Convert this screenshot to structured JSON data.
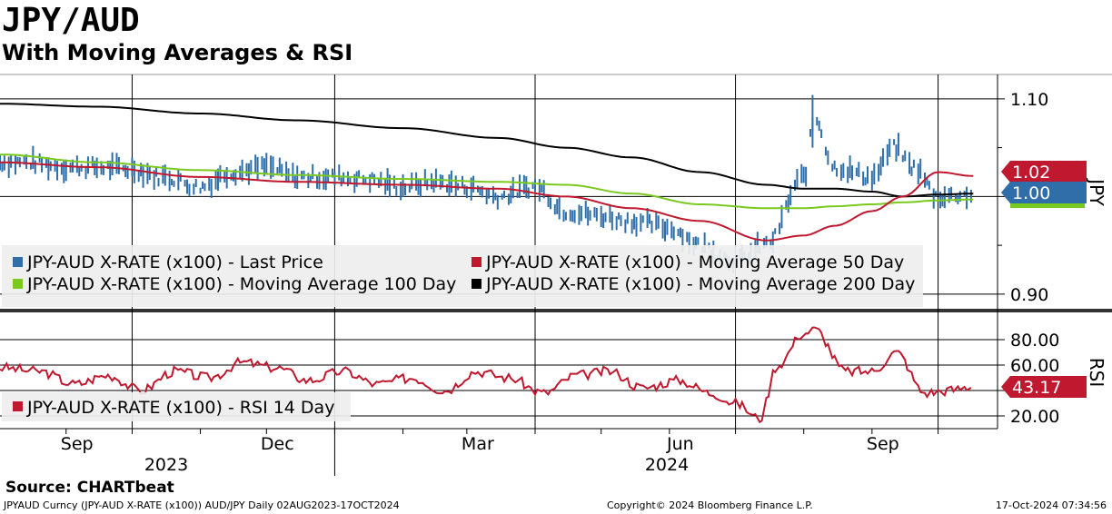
{
  "header": {
    "title": "JPY/AUD",
    "subtitle": "With Moving Averages & RSI"
  },
  "footer": {
    "source": "Source: CHARTbeat",
    "security": "JPYAUD Curncy (JPY-AUD X-RATE (x100)) AUD/JPY  Daily 02AUG2023-17OCT2024",
    "copyright": "Copyright© 2024 Bloomberg Finance L.P.",
    "timestamp": "17-Oct-2024 07:34:56"
  },
  "colors": {
    "last_price": "#2f6ea8",
    "ma50": "#c0182e",
    "ma100": "#7ac91f",
    "ma200": "#000000",
    "rsi": "#c0182e"
  },
  "chart_data": [
    {
      "type": "line",
      "panel": "price",
      "yaxis_label": "JPY",
      "ylim": [
        0.885,
        1.125
      ],
      "yticks": [
        0.9,
        1.0,
        1.1
      ],
      "ytick_labels": [
        "0.90",
        "1.00",
        "1.10"
      ],
      "xticks": [
        "Sep",
        "Dec",
        "Mar",
        "Jun",
        "Sep"
      ],
      "year_labels": [
        "2023",
        "2024"
      ],
      "legend_placement": "bottom-left",
      "last_value_labels": [
        {
          "series": "JPY-AUD X-RATE (x100) - Moving Average 50 Day",
          "value": "1.02"
        },
        {
          "series": "JPY-AUD X-RATE (x100) - Last Price",
          "value": "1.00"
        }
      ],
      "series": [
        {
          "name": "JPY-AUD X-RATE (x100) - Last Price",
          "style": "bar-ohlc",
          "x": [
            "2023-08-02",
            "2023-08-15",
            "2023-09-01",
            "2023-09-15",
            "2023-10-01",
            "2023-10-15",
            "2023-11-01",
            "2023-11-15",
            "2023-12-01",
            "2023-12-15",
            "2024-01-01",
            "2024-01-15",
            "2024-02-01",
            "2024-02-15",
            "2024-03-01",
            "2024-03-15",
            "2024-04-01",
            "2024-04-15",
            "2024-05-01",
            "2024-05-15",
            "2024-06-01",
            "2024-06-15",
            "2024-07-01",
            "2024-07-15",
            "2024-08-01",
            "2024-08-06",
            "2024-08-15",
            "2024-09-01",
            "2024-09-11",
            "2024-09-20",
            "2024-10-01",
            "2024-10-17"
          ],
          "values": [
            1.035,
            1.035,
            1.03,
            1.03,
            1.028,
            1.02,
            1.01,
            1.025,
            1.03,
            1.02,
            1.02,
            1.018,
            1.01,
            1.015,
            1.01,
            1.0,
            1.01,
            0.985,
            0.98,
            0.975,
            0.968,
            0.95,
            0.935,
            0.95,
            1.02,
            1.08,
            1.03,
            1.02,
            1.05,
            1.03,
            1.0,
            1.002
          ]
        },
        {
          "name": "JPY-AUD X-RATE (x100) - Moving Average 50 Day",
          "x": [
            "2023-08-02",
            "2023-09-15",
            "2023-11-01",
            "2023-12-15",
            "2024-02-01",
            "2024-03-15",
            "2024-04-15",
            "2024-05-15",
            "2024-06-15",
            "2024-07-15",
            "2024-08-01",
            "2024-08-15",
            "2024-09-01",
            "2024-09-15",
            "2024-10-01",
            "2024-10-17"
          ],
          "values": [
            1.035,
            1.03,
            1.02,
            1.015,
            1.012,
            1.008,
            1.0,
            0.988,
            0.975,
            0.955,
            0.96,
            0.97,
            0.985,
            1.0,
            1.025,
            1.021
          ]
        },
        {
          "name": "JPY-AUD X-RATE (x100) - Moving Average 100 Day",
          "x": [
            "2023-08-02",
            "2023-09-15",
            "2023-11-01",
            "2023-12-15",
            "2024-02-01",
            "2024-03-15",
            "2024-04-15",
            "2024-05-15",
            "2024-06-15",
            "2024-07-15",
            "2024-08-01",
            "2024-08-15",
            "2024-09-01",
            "2024-09-15",
            "2024-10-01",
            "2024-10-17"
          ],
          "values": [
            1.043,
            1.035,
            1.027,
            1.022,
            1.018,
            1.015,
            1.012,
            1.003,
            0.992,
            0.988,
            0.988,
            0.99,
            0.992,
            0.994,
            0.996,
            0.997
          ]
        },
        {
          "name": "JPY-AUD X-RATE (x100) - Moving Average 200 Day",
          "x": [
            "2023-08-02",
            "2023-09-15",
            "2023-11-01",
            "2023-12-15",
            "2024-02-01",
            "2024-03-15",
            "2024-04-15",
            "2024-05-15",
            "2024-06-15",
            "2024-07-15",
            "2024-08-01",
            "2024-08-15",
            "2024-09-01",
            "2024-09-15",
            "2024-10-01",
            "2024-10-17"
          ],
          "values": [
            1.095,
            1.092,
            1.085,
            1.078,
            1.07,
            1.06,
            1.05,
            1.04,
            1.025,
            1.012,
            1.008,
            1.008,
            1.005,
            1.0,
            1.002,
            1.003
          ]
        }
      ]
    },
    {
      "type": "line",
      "panel": "rsi",
      "yaxis_label": "RSI",
      "ylim": [
        10,
        100
      ],
      "yticks": [
        20,
        40,
        60,
        80
      ],
      "ytick_labels": [
        "20.00",
        "",
        "60.00",
        "80.00"
      ],
      "legend_placement": "bottom-left",
      "last_value_labels": [
        {
          "series": "JPY-AUD X-RATE (x100) - RSI 14 Day",
          "value": "43.17"
        }
      ],
      "series": [
        {
          "name": "JPY-AUD X-RATE (x100) - RSI 14 Day",
          "x": [
            "2023-08-02",
            "2023-08-20",
            "2023-09-05",
            "2023-09-20",
            "2023-10-05",
            "2023-10-20",
            "2023-11-05",
            "2023-11-20",
            "2023-12-05",
            "2023-12-20",
            "2024-01-05",
            "2024-01-20",
            "2024-02-05",
            "2024-02-20",
            "2024-03-05",
            "2024-03-20",
            "2024-04-05",
            "2024-04-20",
            "2024-05-05",
            "2024-05-20",
            "2024-06-05",
            "2024-06-20",
            "2024-07-01",
            "2024-07-12",
            "2024-07-20",
            "2024-08-01",
            "2024-08-06",
            "2024-08-20",
            "2024-09-01",
            "2024-09-12",
            "2024-09-25",
            "2024-10-05",
            "2024-10-17"
          ],
          "values": [
            58,
            55,
            45,
            52,
            40,
            55,
            50,
            62,
            58,
            48,
            55,
            45,
            50,
            40,
            55,
            50,
            38,
            52,
            55,
            42,
            48,
            38,
            30,
            18,
            60,
            85,
            88,
            55,
            55,
            70,
            38,
            40,
            43.17
          ]
        }
      ]
    }
  ]
}
